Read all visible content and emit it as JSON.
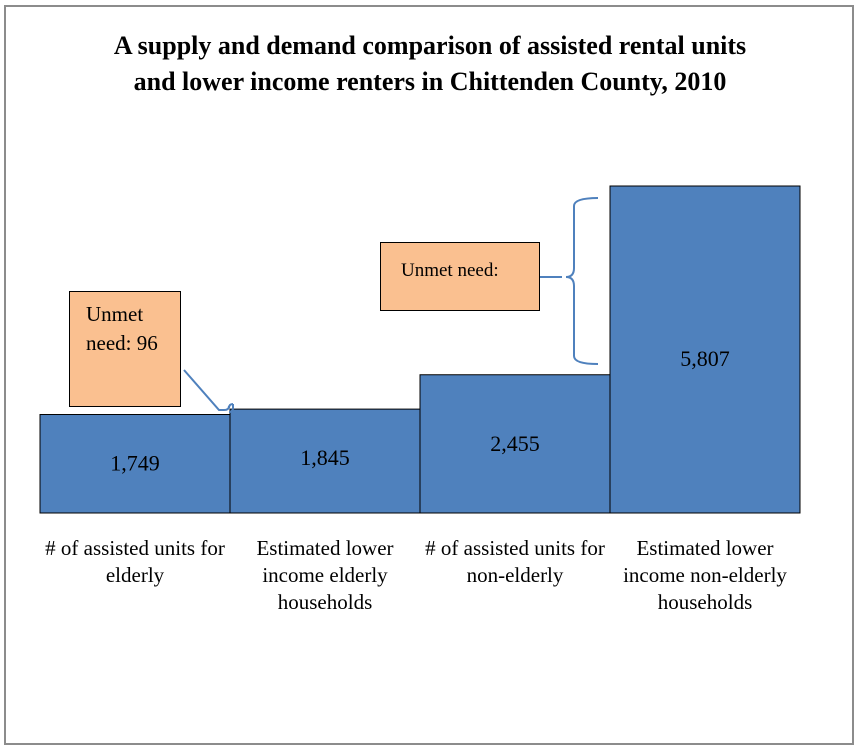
{
  "chart_data": {
    "type": "bar",
    "title": "A supply and demand comparison of assisted rental units and lower income renters in Chittenden County, 2010",
    "categories": [
      "# of assisted units for elderly",
      "Estimated lower income elderly households",
      "# of assisted units for non-elderly",
      "Estimated lower income non-elderly households"
    ],
    "values": [
      1749,
      1845,
      2455,
      5807
    ],
    "value_labels": [
      "1,749",
      "1,845",
      "2,455",
      "5,807"
    ],
    "ylim": [
      0,
      5807
    ],
    "xlabel": "",
    "ylabel": "",
    "grid": false,
    "bar_color": "#4f81bd",
    "annotations": [
      {
        "text": "Unmet need: 96",
        "between": [
          0,
          1
        ]
      },
      {
        "text": "Unmet need:",
        "between": [
          2,
          3
        ]
      }
    ]
  },
  "colors": {
    "bar": "#4f81bd",
    "callout_fill": "#fac090",
    "connector": "#4f81bd"
  }
}
